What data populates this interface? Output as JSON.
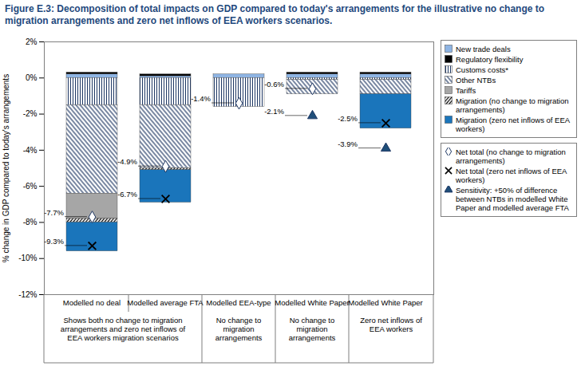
{
  "chart_data": {
    "type": "bar",
    "stacked": true,
    "title": "Figure E.3: Decomposition of total impacts on GDP compared to today's arrangements for the illustrative no change to migration arrangements and zero net inflows of EEA workers scenarios.",
    "y_label": "% change in GDP compared to today's arrangements",
    "categories": [
      "Modelled no deal",
      "Modelled average FTA",
      "Modelled EEA-type",
      "Modelled White Paper",
      "Modelled White Paper"
    ],
    "subcategories": [
      "Shows both no change to migration arrangements and zero net inflows of EEA workers migration scenarios",
      null,
      "No change to migration arrangements",
      "No change to migration arrangements",
      "Zero net inflows of EEA workers"
    ],
    "ylim": [
      -12,
      2
    ],
    "yticks": [
      {
        "value": 2,
        "label": "2%"
      },
      {
        "value": 0,
        "label": "0%"
      },
      {
        "value": -2,
        "label": "-2%"
      },
      {
        "value": -4,
        "label": "-4%"
      },
      {
        "value": -6,
        "label": "-6%"
      },
      {
        "value": -8,
        "label": "-8%"
      },
      {
        "value": -10,
        "label": "-10%"
      },
      {
        "value": -12,
        "label": "-12%"
      }
    ],
    "grid": false,
    "legend": "right",
    "series": [
      {
        "name": "New trade deals",
        "color": "#8eb4e3",
        "values": [
          0.2,
          0.1,
          0.2,
          0.2,
          0.2
        ]
      },
      {
        "name": "Regulatory flexibility",
        "color": "#000000",
        "values": [
          0.1,
          0.1,
          0,
          0.1,
          0.1
        ]
      },
      {
        "name": "Customs costs*",
        "color": "#1f3864",
        "values": [
          -1.5,
          -1.5,
          -1.6,
          -0.1,
          -0.1
        ]
      },
      {
        "name": "Other NTBs",
        "color": "#1f3864",
        "values": [
          -4.9,
          -3.5,
          0,
          -0.8,
          -0.8
        ]
      },
      {
        "name": "Tariffs",
        "color": "#a6a6a6",
        "values": [
          -1.4,
          0,
          0,
          0,
          0
        ]
      },
      {
        "name": "Migration (no change to migration arrangements)",
        "color": "#000000",
        "values": [
          -0.2,
          -0.1,
          0,
          0,
          0
        ]
      },
      {
        "name": "Migration (zero net inflows of EEA workers)",
        "color": "#1a75bb",
        "values": [
          -1.6,
          -1.8,
          0,
          0,
          -1.9
        ]
      },
      {
        "name": "Net total (no change to migration arrangements)",
        "type": "scatter",
        "marker": "diamond",
        "color": "#ffffff",
        "values": [
          -7.7,
          -4.9,
          -1.4,
          -0.6,
          null
        ],
        "value_labels": [
          "-7.7%",
          "-4.9%",
          "-1.4%",
          "-0.6%",
          null
        ]
      },
      {
        "name": "Net total (zero net inflows of EEA workers)",
        "type": "scatter",
        "marker": "times",
        "color": "#000000",
        "values": [
          -9.3,
          -6.7,
          null,
          null,
          -2.5
        ],
        "value_labels": [
          "-9.3%",
          "-6.7%",
          null,
          null,
          "-2.5%"
        ]
      },
      {
        "name": "Sensitivity: +50% of difference between NTBs in modelled White Paper and modelled average FTA",
        "type": "scatter",
        "marker": "triangle",
        "color": "#1f4e79",
        "values": [
          null,
          null,
          null,
          -2.1,
          -3.9
        ],
        "value_labels": [
          null,
          null,
          null,
          "-2.1%",
          "-3.9%"
        ]
      }
    ]
  }
}
